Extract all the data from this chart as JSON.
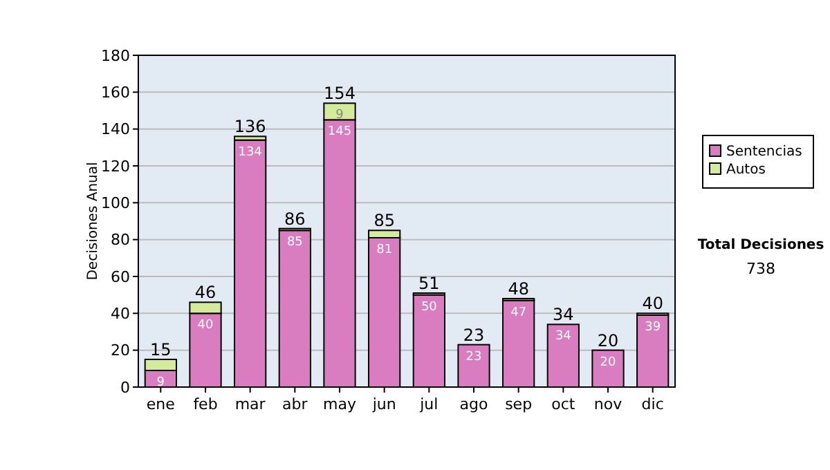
{
  "chart_data": {
    "type": "bar",
    "stacked": true,
    "ylabel": "Decisiones Anual",
    "categories": [
      "ene",
      "feb",
      "mar",
      "abr",
      "may",
      "jun",
      "jul",
      "ago",
      "sep",
      "oct",
      "nov",
      "dic"
    ],
    "series": [
      {
        "name": "Sentencias",
        "color": "#da7cc0",
        "values": [
          9,
          40,
          134,
          85,
          145,
          81,
          50,
          23,
          47,
          34,
          20,
          39
        ],
        "value_labels": [
          "9",
          "40",
          "134",
          "85",
          "145",
          "81",
          "50",
          "23",
          "47",
          "34",
          "20",
          "39"
        ]
      },
      {
        "name": "Autos",
        "color": "#d4eb9a",
        "values": [
          6,
          6,
          2,
          1,
          9,
          4,
          1,
          0,
          1,
          0,
          0,
          1
        ],
        "value_labels": [
          null,
          null,
          null,
          null,
          "9",
          null,
          null,
          null,
          null,
          null,
          null,
          null
        ]
      }
    ],
    "totals": [
      "15",
      "46",
      "136",
      "86",
      "154",
      "85",
      "51",
      "23",
      "48",
      "34",
      "20",
      "40"
    ],
    "ylim": [
      0,
      180
    ],
    "yticks": [
      0,
      20,
      40,
      60,
      80,
      100,
      120,
      140,
      160,
      180
    ],
    "grid": "y",
    "legend": "right",
    "annotations": [
      "Total Decisiones",
      "738"
    ]
  }
}
